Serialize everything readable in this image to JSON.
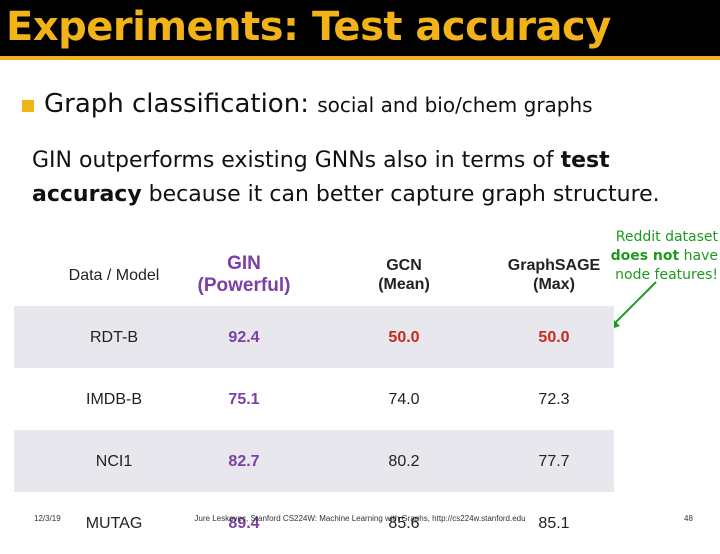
{
  "header": {
    "title": "Experiments: Test accuracy"
  },
  "colors": {
    "accent": "#f2b318",
    "gin": "#7b3fa5",
    "bad": "#c42b1c",
    "note": "#1e9a1e",
    "shade": "#e7e7ed"
  },
  "bullet": {
    "main": "Graph classification:",
    "sub": "social and bio/chem graphs"
  },
  "paragraph": {
    "part1": "GIN outperforms existing GNNs also in terms of ",
    "bold1": "test accuracy",
    "part2": " because it can better capture graph structure."
  },
  "annotation": {
    "line1": "Reddit dataset",
    "bold": "does not",
    "line2a": " have",
    "line3": "node features!"
  },
  "table": {
    "headers": {
      "col0": "Data / Model",
      "col1_line1": "GIN",
      "col1_line2": "(Powerful)",
      "col2_line1": "GCN",
      "col2_line2": "(Mean)",
      "col3_line1": "GraphSAGE",
      "col3_line2": "(Max)"
    },
    "rows": [
      {
        "name": "RDT-B",
        "gin": "92.4",
        "gcn": "50.0",
        "sage": "50.0"
      },
      {
        "name": "IMDB-B",
        "gin": "75.1",
        "gcn": "74.0",
        "sage": "72.3"
      },
      {
        "name": "NCI1",
        "gin": "82.7",
        "gcn": "80.2",
        "sage": "77.7"
      },
      {
        "name": "MUTAG",
        "gin": "89.4",
        "gcn": "85.6",
        "sage": "85.1"
      }
    ]
  },
  "footer": {
    "date": "12/3/19",
    "center": "Jure Leskovec, Stanford CS224W: Machine Learning with Graphs, http://cs224w.stanford.edu",
    "page": "48"
  }
}
